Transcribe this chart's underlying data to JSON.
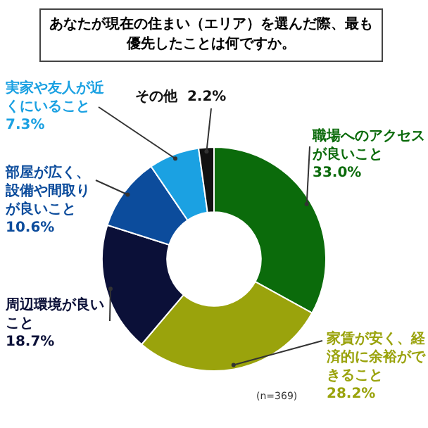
{
  "chart_data": {
    "type": "donut",
    "title": "あなたが現在の住まい（エリア）を選んだ際、最も優先したことは何ですか。",
    "categories": [
      "職場へのアクセスが良いこと",
      "家賃が安く、経済的に余裕ができること",
      "周辺環境が良いこと",
      "部屋が広く、設備や間取りが良いこと",
      "実家や友人が近くにいること",
      "その他"
    ],
    "values": [
      33.0,
      28.2,
      18.7,
      10.6,
      7.3,
      2.2
    ],
    "value_labels": [
      "33.0%",
      "28.2%",
      "18.7%",
      "10.6%",
      "7.3%",
      "2.2%"
    ],
    "colors": [
      "#0b6b0b",
      "#9aa30c",
      "#0b1038",
      "#0c4c9c",
      "#1ba1e2",
      "#111111"
    ],
    "annotations": [
      "(n=369)"
    ],
    "legend": false
  }
}
